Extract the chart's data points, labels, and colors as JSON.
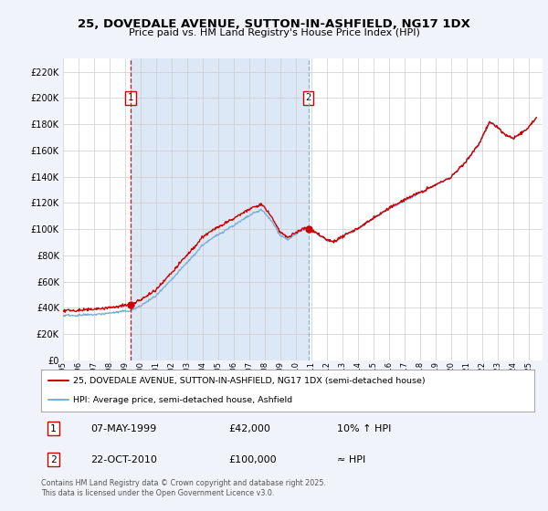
{
  "title1": "25, DOVEDALE AVENUE, SUTTON-IN-ASHFIELD, NG17 1DX",
  "title2": "Price paid vs. HM Land Registry's House Price Index (HPI)",
  "bg_color": "#f0f4fa",
  "plot_bg_color": "#ffffff",
  "shade_color": "#dce8f5",
  "legend_line1": "25, DOVEDALE AVENUE, SUTTON-IN-ASHFIELD, NG17 1DX (semi-detached house)",
  "legend_line2": "HPI: Average price, semi-detached house, Ashfield",
  "annotation1": {
    "num": "1",
    "date": "07-MAY-1999",
    "price": "£42,000",
    "note": "10% ↑ HPI"
  },
  "annotation2": {
    "num": "2",
    "date": "22-OCT-2010",
    "price": "£100,000",
    "note": "≈ HPI"
  },
  "footer": "Contains HM Land Registry data © Crown copyright and database right 2025.\nThis data is licensed under the Open Government Licence v3.0.",
  "ylim": [
    0,
    230000
  ],
  "yticks": [
    0,
    20000,
    40000,
    60000,
    80000,
    100000,
    120000,
    140000,
    160000,
    180000,
    200000,
    220000
  ],
  "sale1_year": 1999.35,
  "sale1_price": 42000,
  "sale2_year": 2010.81,
  "sale2_price": 100000,
  "red_color": "#cc0000",
  "blue_color": "#7ab0d8",
  "xmin": 1995,
  "xmax": 2025.9
}
